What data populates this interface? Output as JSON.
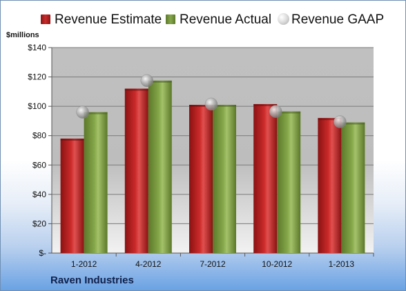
{
  "unit_label": "$millions",
  "company": "Raven Industries",
  "colors": {
    "estimate": "#cc2a2a",
    "actual": "#86a74a",
    "gaap": "#bfbfbf",
    "plot_bg": "#c0c0c0"
  },
  "legend": [
    {
      "label": "Revenue Estimate",
      "kind": "swatch",
      "color": "#c82b2b"
    },
    {
      "label": "Revenue Actual",
      "kind": "swatch",
      "color": "#86a74a"
    },
    {
      "label": "Revenue GAAP",
      "kind": "marker",
      "color": "#bfbfbf"
    }
  ],
  "chart_data": {
    "type": "bar",
    "categories": [
      "1-2012",
      "4-2012",
      "7-2012",
      "10-2012",
      "1-2013"
    ],
    "series": [
      {
        "name": "Revenue Estimate",
        "type": "bar",
        "values": [
          78,
          112,
          101,
          101.5,
          92
        ]
      },
      {
        "name": "Revenue Actual",
        "type": "bar",
        "values": [
          96,
          117.5,
          101,
          96.5,
          89
        ]
      },
      {
        "name": "Revenue GAAP",
        "type": "scatter",
        "values": [
          96,
          117.5,
          101.5,
          96.5,
          89.5
        ]
      }
    ],
    "ylabel": "$millions",
    "ylim": [
      0,
      140
    ],
    "yticks": [
      0,
      20,
      40,
      60,
      80,
      100,
      120,
      140
    ],
    "ytick_labels": [
      "$-",
      "$20",
      "$40",
      "$60",
      "$80",
      "$100",
      "$120",
      "$140"
    ],
    "grid": true,
    "legend_position": "top"
  }
}
